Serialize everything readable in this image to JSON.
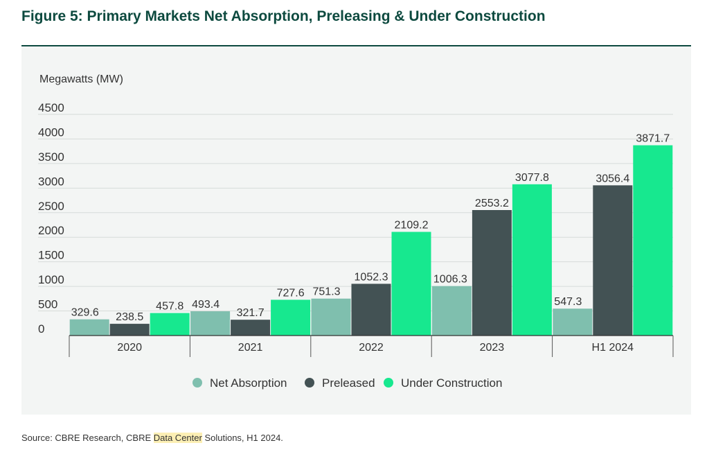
{
  "title": "Figure 5: Primary Markets Net Absorption, Preleasing & Under Construction",
  "source": {
    "prefix": "Source: CBRE Research, CBRE ",
    "highlight": "Data Center",
    "suffix": " Solutions, H1 2024."
  },
  "chart_data": {
    "type": "bar",
    "ylabel": "Megawatts (MW)",
    "xlabel": "",
    "ylim": [
      0,
      4500
    ],
    "yticks": [
      0,
      500,
      1000,
      1500,
      2000,
      2500,
      3000,
      3500,
      4000,
      4500
    ],
    "categories": [
      "2020",
      "2021",
      "2022",
      "2023",
      "H1 2024"
    ],
    "series": [
      {
        "name": "Net Absorption",
        "color": "#7fbfae",
        "values": [
          329.6,
          493.4,
          751.3,
          1006.3,
          547.3
        ]
      },
      {
        "name": "Preleased",
        "color": "#435254",
        "values": [
          238.5,
          321.7,
          1052.3,
          2553.2,
          3056.4
        ]
      },
      {
        "name": "Under Construction",
        "color": "#17e88f",
        "values": [
          457.8,
          727.6,
          2109.2,
          3077.8,
          3871.7
        ]
      }
    ],
    "grid": true,
    "legend": "bottom"
  }
}
